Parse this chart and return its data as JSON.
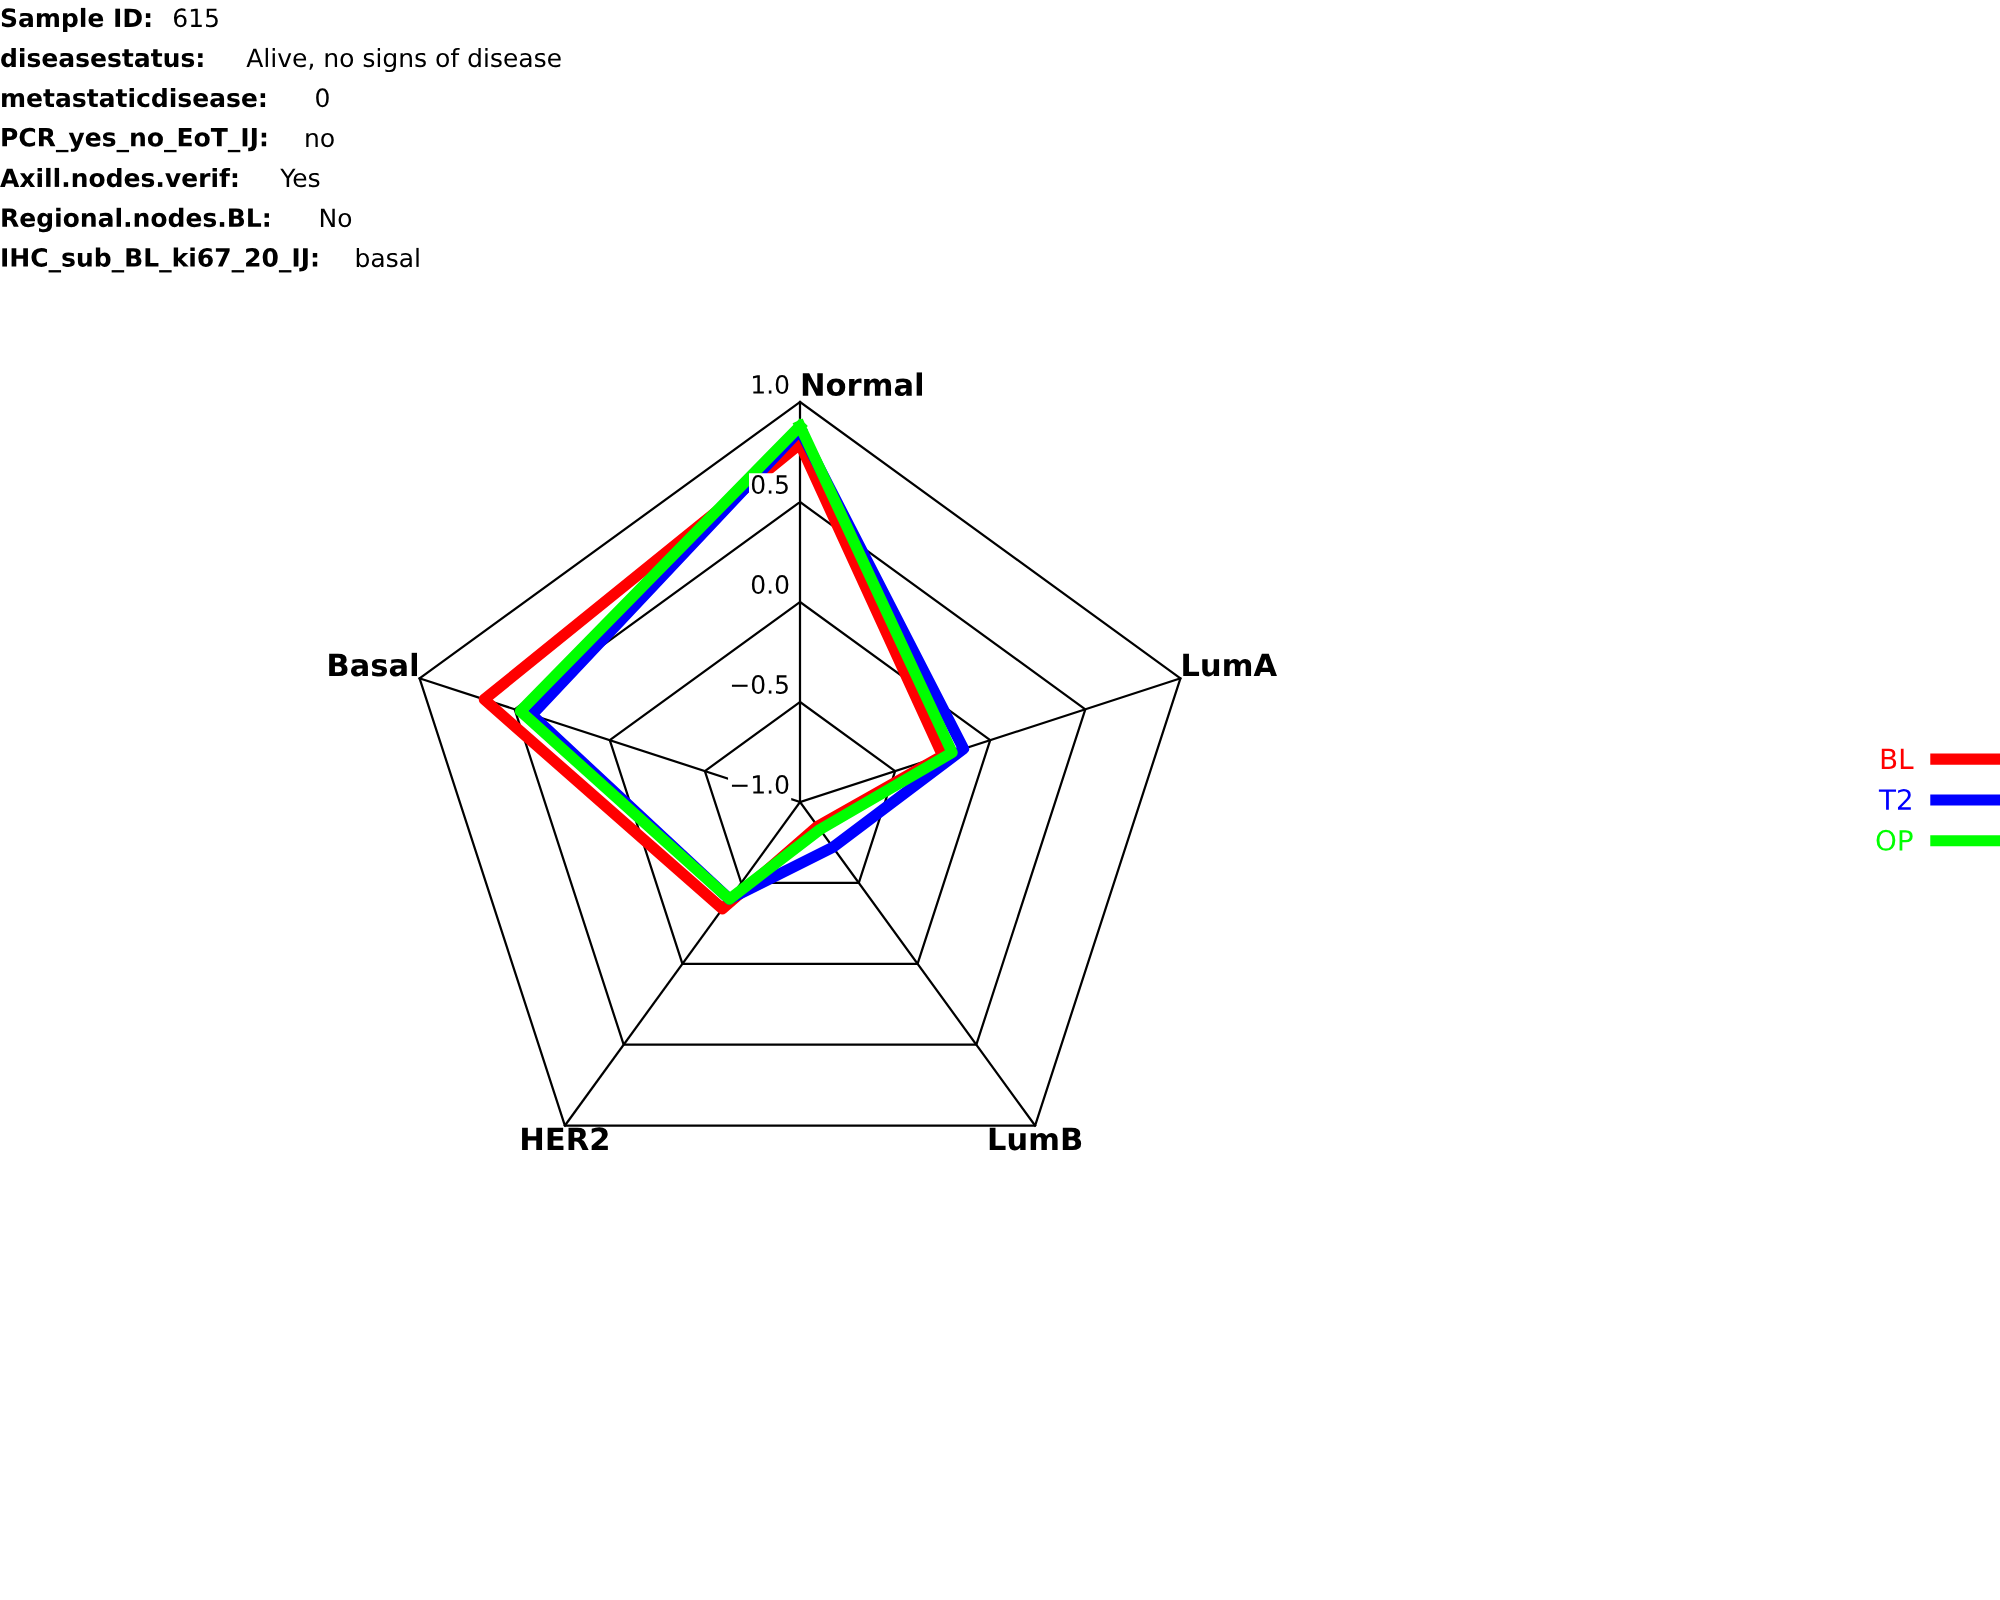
{
  "chart_data": {
    "type": "radar",
    "annotations": [
      "Sample ID: 615",
      "diseasestatus: Alive, no signs of disease",
      "metastaticdisease: 0",
      "PCR_yes_no_EoT_IJ: no",
      "Axill.nodes.verif: Yes",
      "Regional.nodes.BL: No",
      "IHC_sub_BL_ki67_20_IJ: basal"
    ],
    "categories": [
      "Normal",
      "LumA",
      "LumB",
      "HER2",
      "Basal"
    ],
    "ylim": [
      -1.0,
      1.0
    ],
    "yticks": [
      {
        "value": -1.0,
        "label": "−1.0"
      },
      {
        "value": -0.5,
        "label": "−0.5"
      },
      {
        "value": 0.0,
        "label": "0.0"
      },
      {
        "value": 0.5,
        "label": "0.5"
      },
      {
        "value": 1.0,
        "label": "1.0"
      }
    ],
    "series": [
      {
        "name": "BL",
        "color": "#ff0000",
        "values": [
          0.79,
          -0.25,
          -0.85,
          -0.34,
          0.66
        ]
      },
      {
        "name": "T2",
        "color": "#0000ff",
        "values": [
          0.86,
          -0.14,
          -0.72,
          -0.4,
          0.41
        ]
      },
      {
        "name": "OP",
        "color": "#00ff00",
        "values": [
          0.88,
          -0.2,
          -0.83,
          -0.4,
          0.47
        ]
      }
    ],
    "legend": "right",
    "grid": true
  }
}
